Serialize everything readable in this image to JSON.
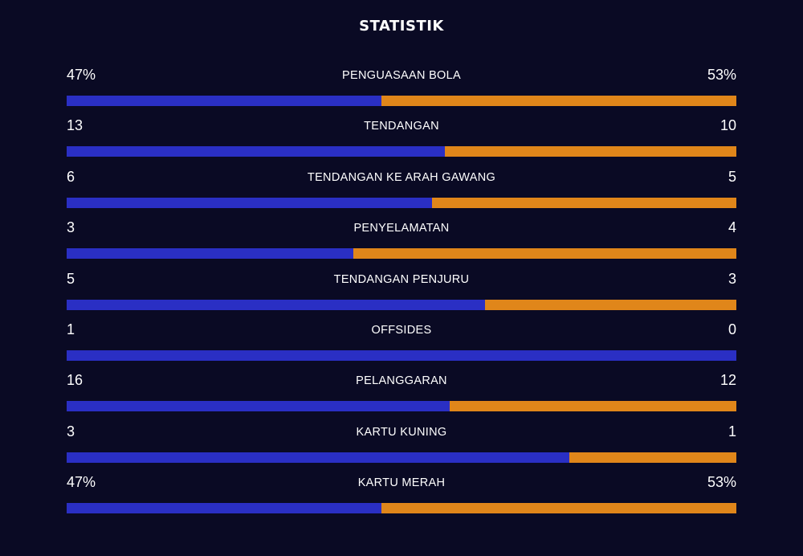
{
  "title": "STATISTIK",
  "colors": {
    "background": "#0a0a24",
    "home_bar": "#2a2fc4",
    "away_bar": "#e0861a",
    "text": "#ffffff"
  },
  "stats": [
    {
      "label": "PENGUASAAN BOLA",
      "home": "47%",
      "away": "53%",
      "home_share": 0.47
    },
    {
      "label": "TENDANGAN",
      "home": "13",
      "away": "10",
      "home_share": 0.5652
    },
    {
      "label": "TENDANGAN KE ARAH GAWANG",
      "home": "6",
      "away": "5",
      "home_share": 0.5455
    },
    {
      "label": "PENYELAMATAN",
      "home": "3",
      "away": "4",
      "home_share": 0.4286
    },
    {
      "label": "TENDANGAN PENJURU",
      "home": "5",
      "away": "3",
      "home_share": 0.625
    },
    {
      "label": "OFFSIDES",
      "home": "1",
      "away": "0",
      "home_share": 1.0
    },
    {
      "label": "PELANGGARAN",
      "home": "16",
      "away": "12",
      "home_share": 0.5714
    },
    {
      "label": "KARTU KUNING",
      "home": "3",
      "away": "1",
      "home_share": 0.75
    },
    {
      "label": "KARTU MERAH",
      "home": "47%",
      "away": "53%",
      "home_share": 0.47
    }
  ]
}
